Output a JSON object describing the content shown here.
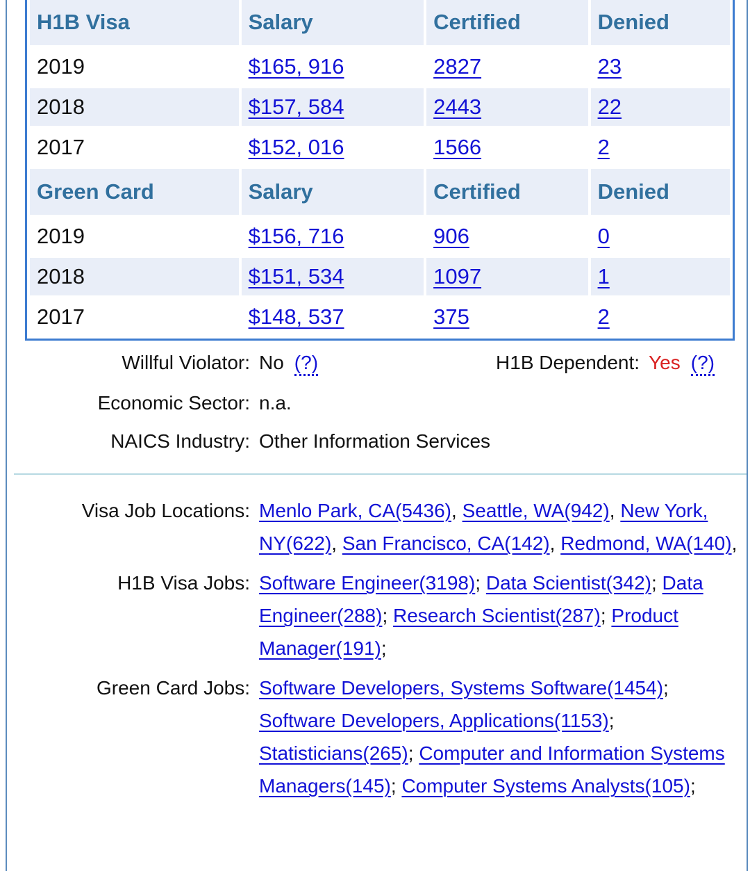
{
  "colors": {
    "frame_border": "#5c8cbe",
    "table_border": "#3d7cd0",
    "table_header_bg": "#e9eef8",
    "table_alt_row_bg": "#e9eef8",
    "table_header_text": "#31709e",
    "link": "#1212d6",
    "dependent_yes_red": "#d92121",
    "divider": "#b7d9e2",
    "text": "#111111"
  },
  "table": {
    "sections": [
      {
        "title": "H1B Visa",
        "columns": [
          "Salary",
          "Certified",
          "Denied"
        ],
        "rows": [
          {
            "year": "2019",
            "salary": "$165, 916",
            "certified": "2827",
            "denied": "23"
          },
          {
            "year": "2018",
            "salary": "$157, 584",
            "certified": "2443",
            "denied": "22"
          },
          {
            "year": "2017",
            "salary": "$152, 016",
            "certified": "1566",
            "denied": "2"
          }
        ]
      },
      {
        "title": "Green Card",
        "columns": [
          "Salary",
          "Certified",
          "Denied"
        ],
        "rows": [
          {
            "year": "2019",
            "salary": "$156, 716",
            "certified": "906",
            "denied": "0"
          },
          {
            "year": "2018",
            "salary": "$151, 534",
            "certified": "1097",
            "denied": "1"
          },
          {
            "year": "2017",
            "salary": "$148, 537",
            "certified": "375",
            "denied": "2"
          }
        ]
      }
    ]
  },
  "info": {
    "willful_violator": {
      "label": "Willful Violator:",
      "value": "No",
      "help": "(?)"
    },
    "h1b_dependent": {
      "label": "H1B Dependent:",
      "value": "Yes",
      "help": "(?)"
    },
    "economic_sector": {
      "label": "Economic Sector:",
      "value": "n.a."
    },
    "naics_industry": {
      "label": "NAICS Industry:",
      "value": "Other Information Services"
    }
  },
  "link_sections": [
    {
      "label": "Visa Job Locations:",
      "items": [
        {
          "text": "Menlo Park, CA(5436)",
          "sep": ", "
        },
        {
          "text": "Seattle, WA(942)",
          "sep": ", "
        },
        {
          "text": "New York, NY(622)",
          "sep": ", "
        },
        {
          "text": "San Francisco, CA(142)",
          "sep": ", "
        },
        {
          "text": "Redmond, WA(140)",
          "sep": ","
        }
      ]
    },
    {
      "label": "H1B Visa Jobs:",
      "items": [
        {
          "text": "Software Engineer(3198)",
          "sep": "; "
        },
        {
          "text": "Data Scientist(342)",
          "sep": "; "
        },
        {
          "text": "Data Engineer(288)",
          "sep": "; "
        },
        {
          "text": "Research Scientist(287)",
          "sep": "; "
        },
        {
          "text": "Product Manager(191)",
          "sep": ";"
        }
      ]
    },
    {
      "label": "Green Card Jobs:",
      "items": [
        {
          "text": "Software Developers, Systems Software(1454)",
          "sep": "; "
        },
        {
          "text": "Software Developers, Applications(1153)",
          "sep": "; "
        },
        {
          "text": "Statisticians(265)",
          "sep": "; "
        },
        {
          "text": "Computer and Information Systems Managers(145)",
          "sep": "; "
        },
        {
          "text": "Computer Systems Analysts(105)",
          "sep": ";"
        }
      ]
    }
  ]
}
